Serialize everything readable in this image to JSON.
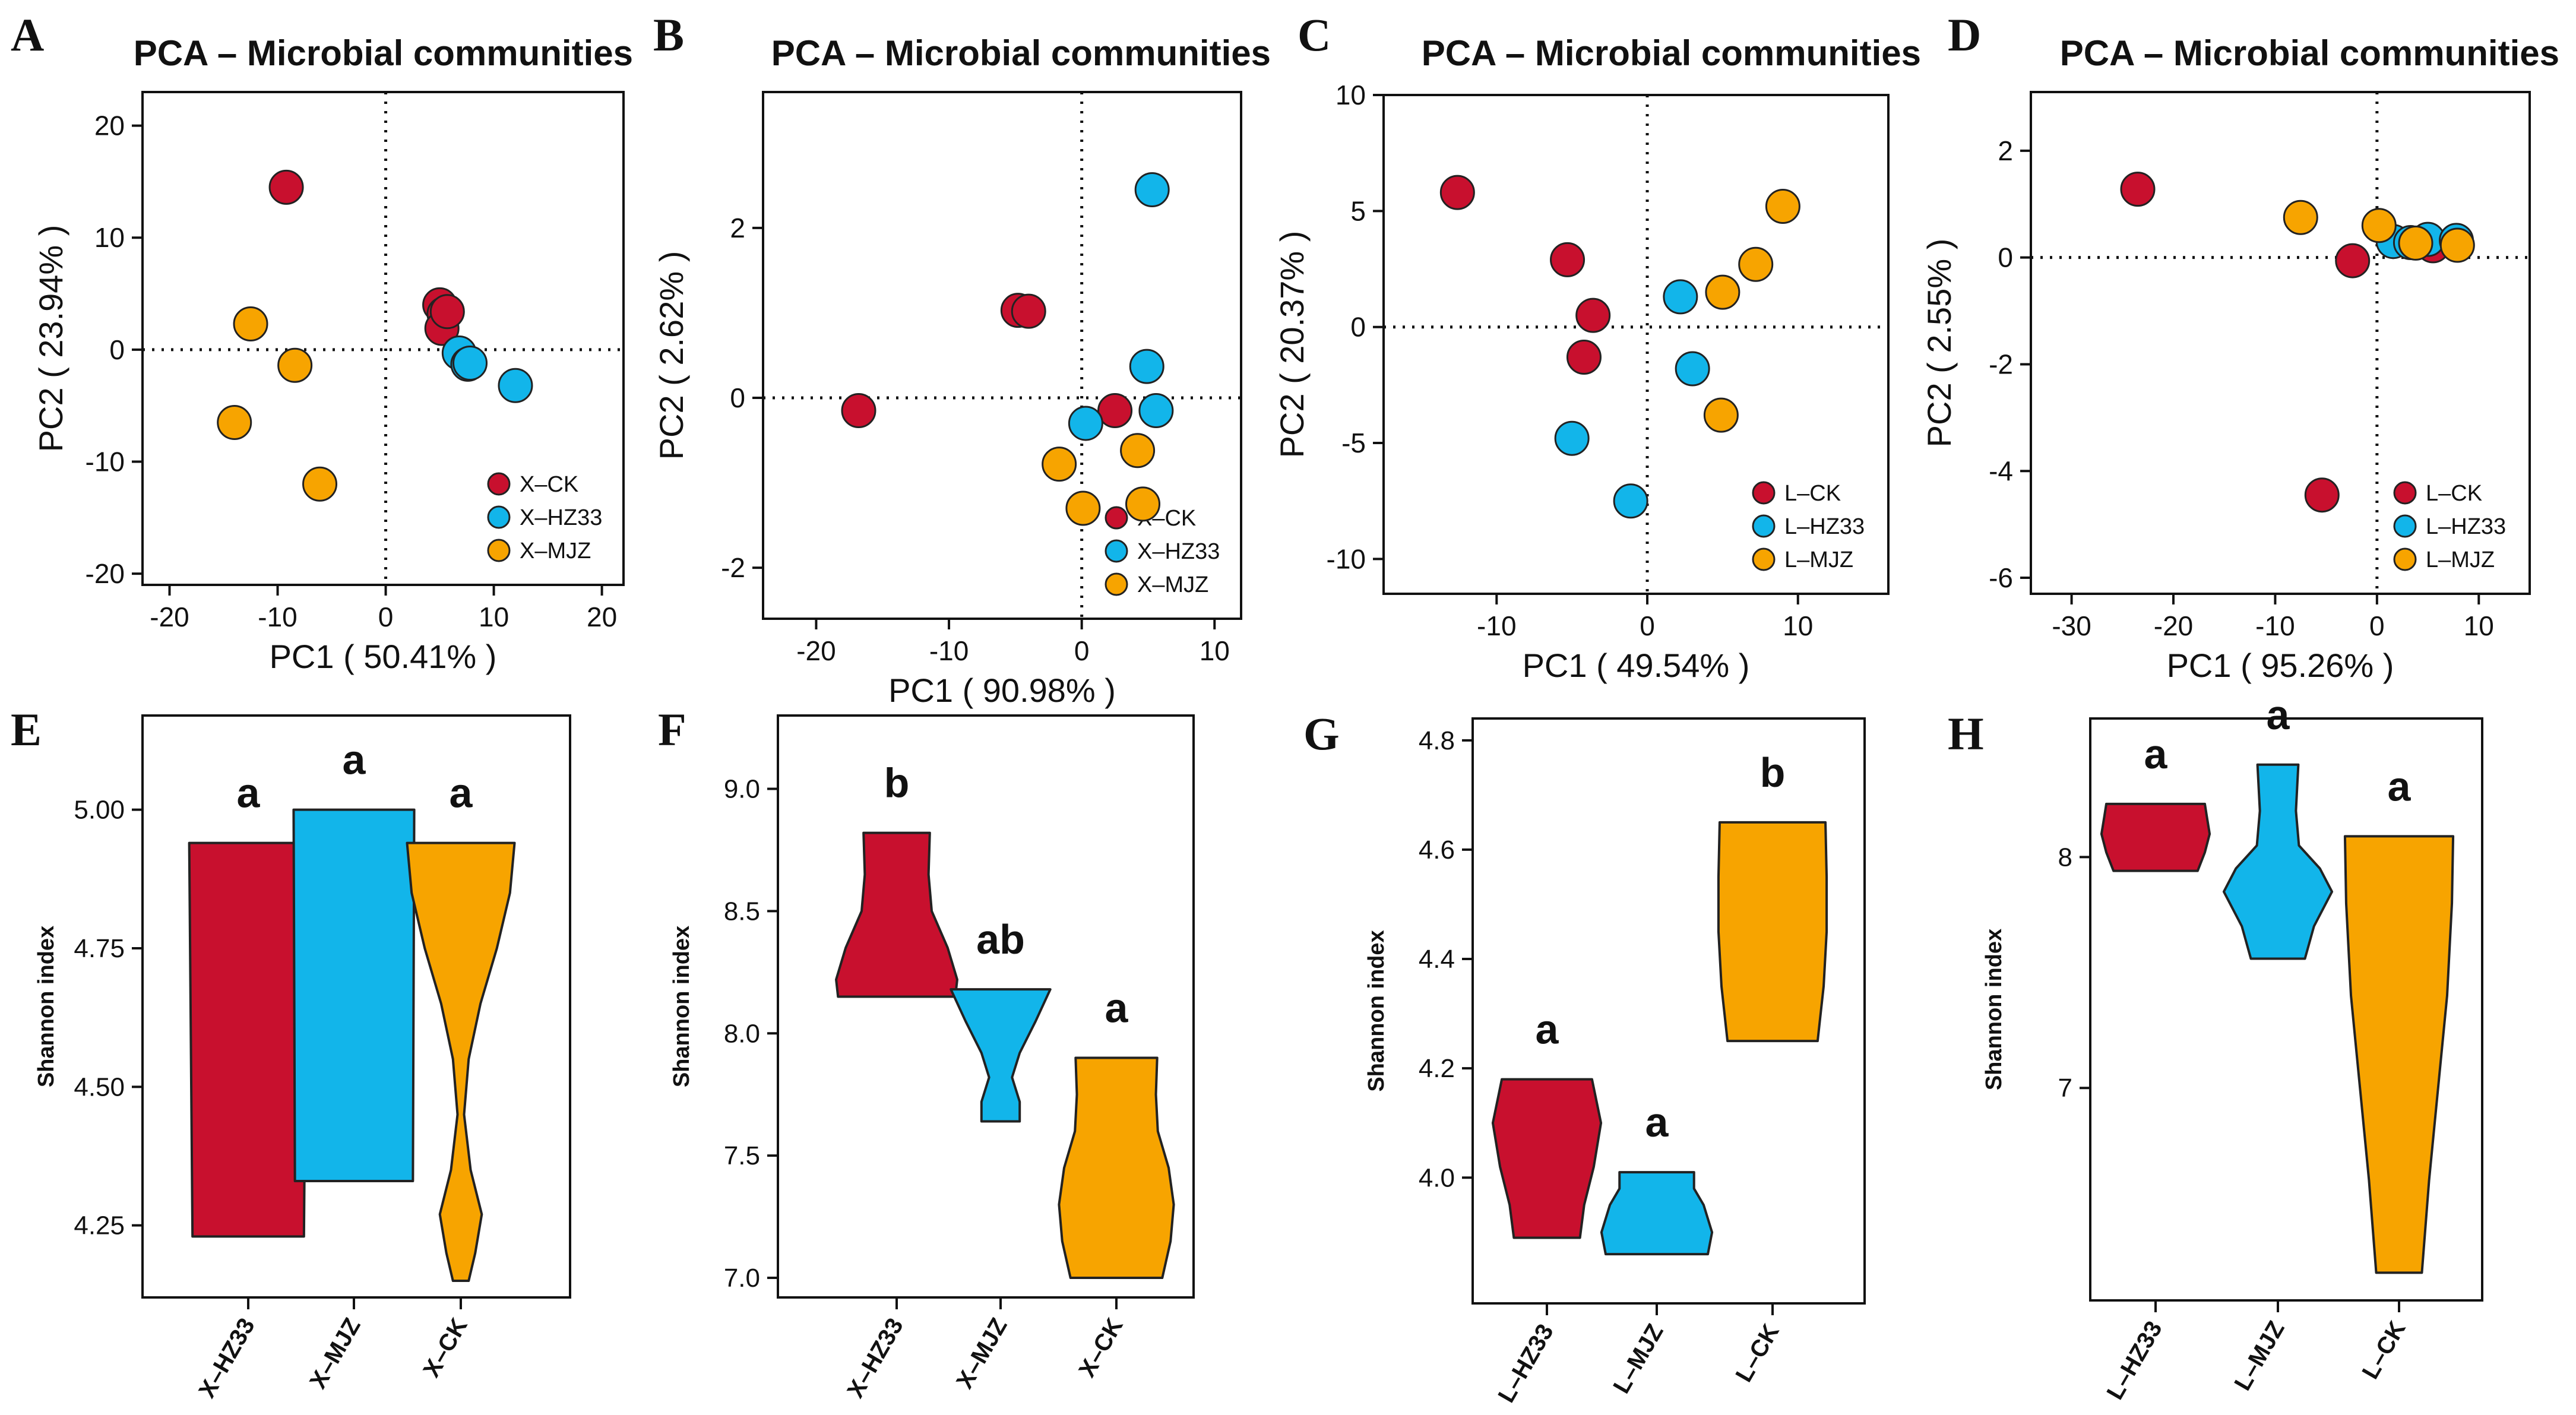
{
  "colors": {
    "red": "#c8102e",
    "blue": "#12b5ea",
    "orange": "#f7a400"
  },
  "chart_data": [
    {
      "panel": "A",
      "type": "scatter",
      "title": "PCA – Microbial communities",
      "xlabel": "PC1 ( 50.41% )",
      "ylabel": "PC2 ( 23.94% )",
      "xlim": [
        -22.5,
        22
      ],
      "ylim": [
        -21,
        23
      ],
      "xticks": [
        -20,
        -10,
        0,
        10,
        20
      ],
      "yticks": [
        -20,
        -10,
        0,
        10,
        20
      ],
      "series": [
        {
          "name": "X–CK",
          "color": "red",
          "points": [
            [
              -9.2,
              14.5
            ],
            [
              5.0,
              4.0
            ],
            [
              5.4,
              3.2
            ],
            [
              5.2,
              1.9
            ],
            [
              5.7,
              3.4
            ]
          ]
        },
        {
          "name": "X–HZ33",
          "color": "blue",
          "points": [
            [
              6.8,
              -0.3
            ],
            [
              7.6,
              -1.3
            ],
            [
              12.0,
              -3.2
            ],
            [
              7.8,
              -1.2
            ]
          ]
        },
        {
          "name": "X–MJZ",
          "color": "orange",
          "points": [
            [
              -12.5,
              2.3
            ],
            [
              -8.4,
              -1.4
            ],
            [
              -14.0,
              -6.5
            ],
            [
              -6.1,
              -12.0
            ]
          ]
        }
      ]
    },
    {
      "panel": "B",
      "type": "scatter",
      "title": "PCA – Microbial communities",
      "xlabel": "PC1 ( 90.98% )",
      "ylabel": "PC2 ( 2.62% )",
      "xlim": [
        -24,
        12
      ],
      "ylim": [
        -2.6,
        3.6
      ],
      "xticks": [
        -20,
        -10,
        0,
        10
      ],
      "yticks": [
        -2,
        0,
        2
      ],
      "series": [
        {
          "name": "X–CK",
          "color": "red",
          "points": [
            [
              -16.8,
              -0.15
            ],
            [
              -4.8,
              1.03
            ],
            [
              -4.0,
              1.02
            ],
            [
              2.5,
              -0.15
            ]
          ]
        },
        {
          "name": "X–HZ33",
          "color": "blue",
          "points": [
            [
              5.3,
              2.45
            ],
            [
              4.9,
              0.37
            ],
            [
              5.6,
              -0.15
            ],
            [
              0.3,
              -0.3
            ]
          ]
        },
        {
          "name": "X–MJZ",
          "color": "orange",
          "points": [
            [
              -1.7,
              -0.78
            ],
            [
              0.1,
              -1.3
            ],
            [
              4.2,
              -0.62
            ],
            [
              4.6,
              -1.25
            ]
          ]
        }
      ]
    },
    {
      "panel": "C",
      "type": "scatter",
      "title": "PCA – Microbial communities",
      "xlabel": "PC1 ( 49.54% )",
      "ylabel": "PC2 ( 20.37% )",
      "xlim": [
        -17.5,
        16
      ],
      "ylim": [
        -11.5,
        10
      ],
      "xticks": [
        -10,
        0,
        10
      ],
      "yticks": [
        -10,
        -5,
        0,
        5,
        10
      ],
      "series": [
        {
          "name": "L–CK",
          "color": "red",
          "points": [
            [
              -12.6,
              5.8
            ],
            [
              -5.3,
              2.9
            ],
            [
              -3.6,
              0.5
            ],
            [
              -4.2,
              -1.3
            ]
          ]
        },
        {
          "name": "L–HZ33",
          "color": "blue",
          "points": [
            [
              2.2,
              1.3
            ],
            [
              3.0,
              -1.8
            ],
            [
              -5.0,
              -4.8
            ],
            [
              -1.1,
              -7.5
            ]
          ]
        },
        {
          "name": "L–MJZ",
          "color": "orange",
          "points": [
            [
              9.0,
              5.2
            ],
            [
              7.2,
              2.7
            ],
            [
              5.0,
              1.5
            ],
            [
              4.9,
              -3.8
            ]
          ]
        }
      ]
    },
    {
      "panel": "D",
      "type": "scatter",
      "title": "PCA – Microbial communities",
      "xlabel": "PC1 ( 95.26% )",
      "ylabel": "PC2 ( 2.55% )",
      "xlim": [
        -34,
        15
      ],
      "ylim": [
        -6.3,
        3.1
      ],
      "xticks": [
        -30,
        -20,
        -10,
        0,
        10
      ],
      "yticks": [
        -6,
        -4,
        -2,
        0,
        2
      ],
      "series": [
        {
          "name": "L–CK",
          "color": "red",
          "points": [
            [
              -23.5,
              1.28
            ],
            [
              -2.4,
              -0.06
            ],
            [
              5.5,
              0.22
            ],
            [
              -5.4,
              -4.45
            ]
          ]
        },
        {
          "name": "L–HZ33",
          "color": "blue",
          "points": [
            [
              1.6,
              0.3
            ],
            [
              3.3,
              0.28
            ],
            [
              5.0,
              0.34
            ],
            [
              7.8,
              0.32
            ]
          ]
        },
        {
          "name": "L–MJZ",
          "color": "orange",
          "points": [
            [
              -7.5,
              0.75
            ],
            [
              0.2,
              0.6
            ],
            [
              3.8,
              0.27
            ],
            [
              7.9,
              0.23
            ]
          ]
        }
      ]
    },
    {
      "panel": "E",
      "type": "violin",
      "ylabel": "Shannon index",
      "ylim": [
        4.12,
        5.17
      ],
      "yticks": [
        "4.25",
        "4.50",
        "4.75",
        "5.00"
      ],
      "groups": [
        {
          "label": "X–HZ33",
          "color": "red",
          "min": 4.23,
          "max": 4.94,
          "sig": "a",
          "profile": [
            [
              4.23,
              0.85
            ],
            [
              4.94,
              0.9
            ]
          ]
        },
        {
          "label": "X–MJZ",
          "color": "blue",
          "min": 4.33,
          "max": 5.0,
          "sig": "a",
          "profile": [
            [
              4.33,
              0.9
            ],
            [
              5.0,
              0.92
            ]
          ]
        },
        {
          "label": "X–CK",
          "color": "orange",
          "min": 4.15,
          "max": 4.94,
          "sig": "a",
          "profile": [
            [
              4.15,
              0.12
            ],
            [
              4.2,
              0.22
            ],
            [
              4.27,
              0.32
            ],
            [
              4.35,
              0.15
            ],
            [
              4.45,
              0.05
            ],
            [
              4.55,
              0.12
            ],
            [
              4.65,
              0.3
            ],
            [
              4.75,
              0.55
            ],
            [
              4.85,
              0.75
            ],
            [
              4.94,
              0.82
            ]
          ]
        }
      ]
    },
    {
      "panel": "F",
      "type": "violin",
      "ylabel": "Shannon index",
      "ylim": [
        6.92,
        9.3
      ],
      "yticks": [
        "7.0",
        "7.5",
        "8.0",
        "8.5",
        "9.0"
      ],
      "groups": [
        {
          "label": "X–HZ33",
          "color": "red",
          "min": 8.15,
          "max": 8.82,
          "sig": "b",
          "profile": [
            [
              8.15,
              0.92
            ],
            [
              8.22,
              0.95
            ],
            [
              8.35,
              0.8
            ],
            [
              8.5,
              0.55
            ],
            [
              8.65,
              0.5
            ],
            [
              8.82,
              0.52
            ]
          ]
        },
        {
          "label": "X–MJZ",
          "color": "blue",
          "min": 7.64,
          "max": 8.18,
          "sig": "ab",
          "profile": [
            [
              7.64,
              0.3
            ],
            [
              7.72,
              0.3
            ],
            [
              7.82,
              0.18
            ],
            [
              7.92,
              0.3
            ],
            [
              8.05,
              0.55
            ],
            [
              8.18,
              0.78
            ]
          ]
        },
        {
          "label": "X–CK",
          "color": "orange",
          "min": 7.0,
          "max": 7.9,
          "sig": "a",
          "profile": [
            [
              7.0,
              0.72
            ],
            [
              7.15,
              0.85
            ],
            [
              7.3,
              0.9
            ],
            [
              7.45,
              0.82
            ],
            [
              7.6,
              0.65
            ],
            [
              7.75,
              0.62
            ],
            [
              7.9,
              0.64
            ]
          ]
        }
      ]
    },
    {
      "panel": "G",
      "type": "violin",
      "ylabel": "Shannon index",
      "ylim": [
        3.77,
        4.84
      ],
      "yticks": [
        "4.0",
        "4.2",
        "4.4",
        "4.6",
        "4.8"
      ],
      "groups": [
        {
          "label": "L–HZ33",
          "color": "red",
          "min": 3.89,
          "max": 4.18,
          "sig": "a",
          "profile": [
            [
              3.89,
              0.55
            ],
            [
              3.95,
              0.62
            ],
            [
              4.02,
              0.78
            ],
            [
              4.1,
              0.9
            ],
            [
              4.18,
              0.75
            ]
          ]
        },
        {
          "label": "L–MJZ",
          "color": "blue",
          "min": 3.86,
          "max": 4.01,
          "sig": "a",
          "profile": [
            [
              3.86,
              0.85
            ],
            [
              3.9,
              0.92
            ],
            [
              3.95,
              0.78
            ],
            [
              3.98,
              0.62
            ],
            [
              4.01,
              0.62
            ]
          ]
        },
        {
          "label": "L–CK",
          "color": "orange",
          "min": 4.25,
          "max": 4.65,
          "sig": "b",
          "profile": [
            [
              4.25,
              0.75
            ],
            [
              4.35,
              0.85
            ],
            [
              4.45,
              0.9
            ],
            [
              4.55,
              0.9
            ],
            [
              4.65,
              0.88
            ]
          ]
        }
      ]
    },
    {
      "panel": "H",
      "type": "violin",
      "ylabel": "Shannon index",
      "ylim": [
        6.08,
        8.6
      ],
      "yticks": [
        "7",
        "8"
      ],
      "groups": [
        {
          "label": "L–HZ33",
          "color": "red",
          "min": 7.94,
          "max": 8.23,
          "sig": "a",
          "profile": [
            [
              7.94,
              0.7
            ],
            [
              8.02,
              0.82
            ],
            [
              8.1,
              0.9
            ],
            [
              8.18,
              0.85
            ],
            [
              8.23,
              0.82
            ]
          ]
        },
        {
          "label": "L–MJZ",
          "color": "blue",
          "min": 7.56,
          "max": 8.4,
          "sig": "a",
          "profile": [
            [
              7.56,
              0.45
            ],
            [
              7.7,
              0.6
            ],
            [
              7.85,
              0.9
            ],
            [
              7.95,
              0.7
            ],
            [
              8.05,
              0.35
            ],
            [
              8.2,
              0.3
            ],
            [
              8.4,
              0.34
            ]
          ]
        },
        {
          "label": "L–CK",
          "color": "orange",
          "min": 6.2,
          "max": 8.09,
          "sig": "a",
          "profile": [
            [
              6.2,
              0.38
            ],
            [
              6.6,
              0.5
            ],
            [
              7.0,
              0.65
            ],
            [
              7.4,
              0.8
            ],
            [
              7.8,
              0.88
            ],
            [
              8.09,
              0.9
            ]
          ]
        }
      ]
    }
  ]
}
